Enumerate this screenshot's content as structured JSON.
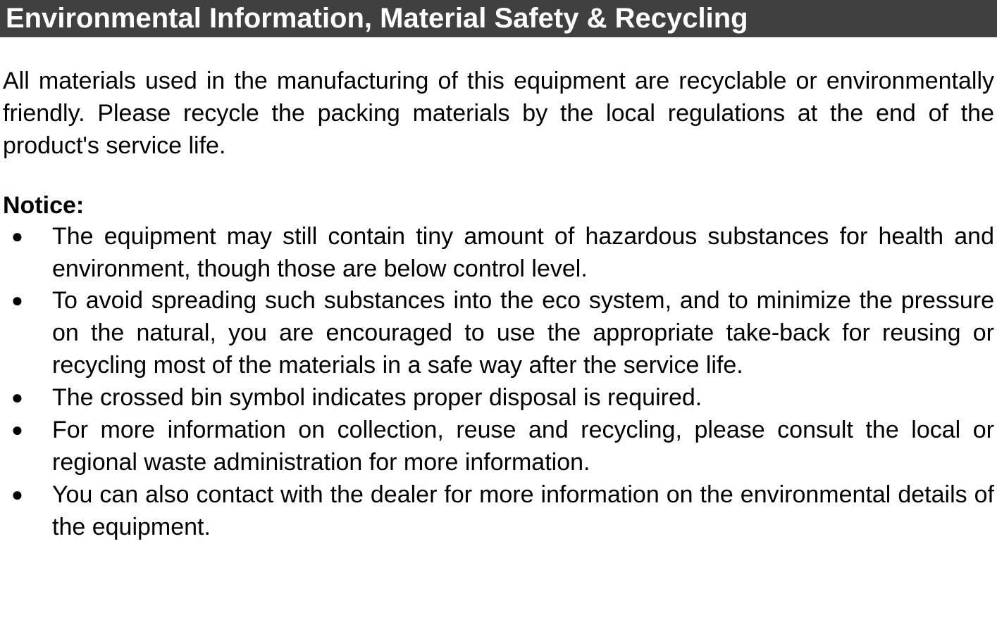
{
  "header": {
    "title": "Environmental Information, Material Safety & Recycling"
  },
  "intro": {
    "text": "All materials used in the manufacturing of this equipment are recyclable or environmentally friendly. Please recycle the packing materials by the local regulations at the end of the product's service life."
  },
  "notice": {
    "label": "Notice:",
    "items": [
      "The equipment may still contain tiny amount of hazardous substances for health and environment, though those are below control level.",
      "To avoid spreading such substances into the eco system, and to minimize the pressure on the natural, you are encouraged to use the appropriate take-back for reusing or recycling most of the materials in a safe way after the service life.",
      "The crossed bin symbol indicates proper disposal is required.",
      "For more information on collection, reuse and recycling, please consult the local or regional waste administration for more information.",
      "You can also contact with the dealer for more information on the environmental details of the equipment."
    ]
  },
  "styling": {
    "header_bg": "#404040",
    "header_text_color": "#ffffff",
    "body_bg": "#ffffff",
    "body_text_color": "#000000",
    "header_fontsize": 40,
    "body_fontsize": 34,
    "font_family": "Arial, Helvetica, sans-serif",
    "line_height": 1.35,
    "bullet_char": "●"
  }
}
